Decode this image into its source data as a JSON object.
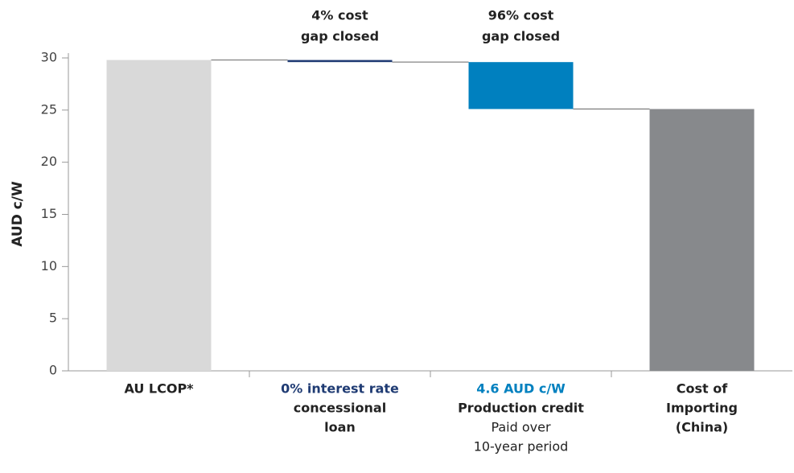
{
  "chart_data": {
    "type": "waterfall",
    "y_label": "AUD c/W",
    "categories": [
      [
        "AU LCOP*"
      ],
      [
        "0% interest rate",
        "concessional",
        "loan"
      ],
      [
        "4.6 AUD c/W",
        "Production credit",
        "Paid over",
        "10-year period"
      ],
      [
        "Cost of",
        "Importing",
        "(China)"
      ]
    ],
    "values": [
      29.8,
      -0.2,
      -4.5,
      25.1
    ],
    "measure": [
      "absolute",
      "relative",
      "relative",
      "absolute"
    ],
    "colors": [
      "#d9d9d9",
      "#1f3b73",
      "#0080bf",
      "#87898c"
    ],
    "annotations": [
      [
        "4% cost",
        "gap closed"
      ],
      [
        "96% cost",
        "gap closed"
      ]
    ],
    "ylim": [
      0,
      30
    ],
    "yticks": [
      0,
      5,
      10,
      15,
      20,
      25,
      30
    ]
  }
}
